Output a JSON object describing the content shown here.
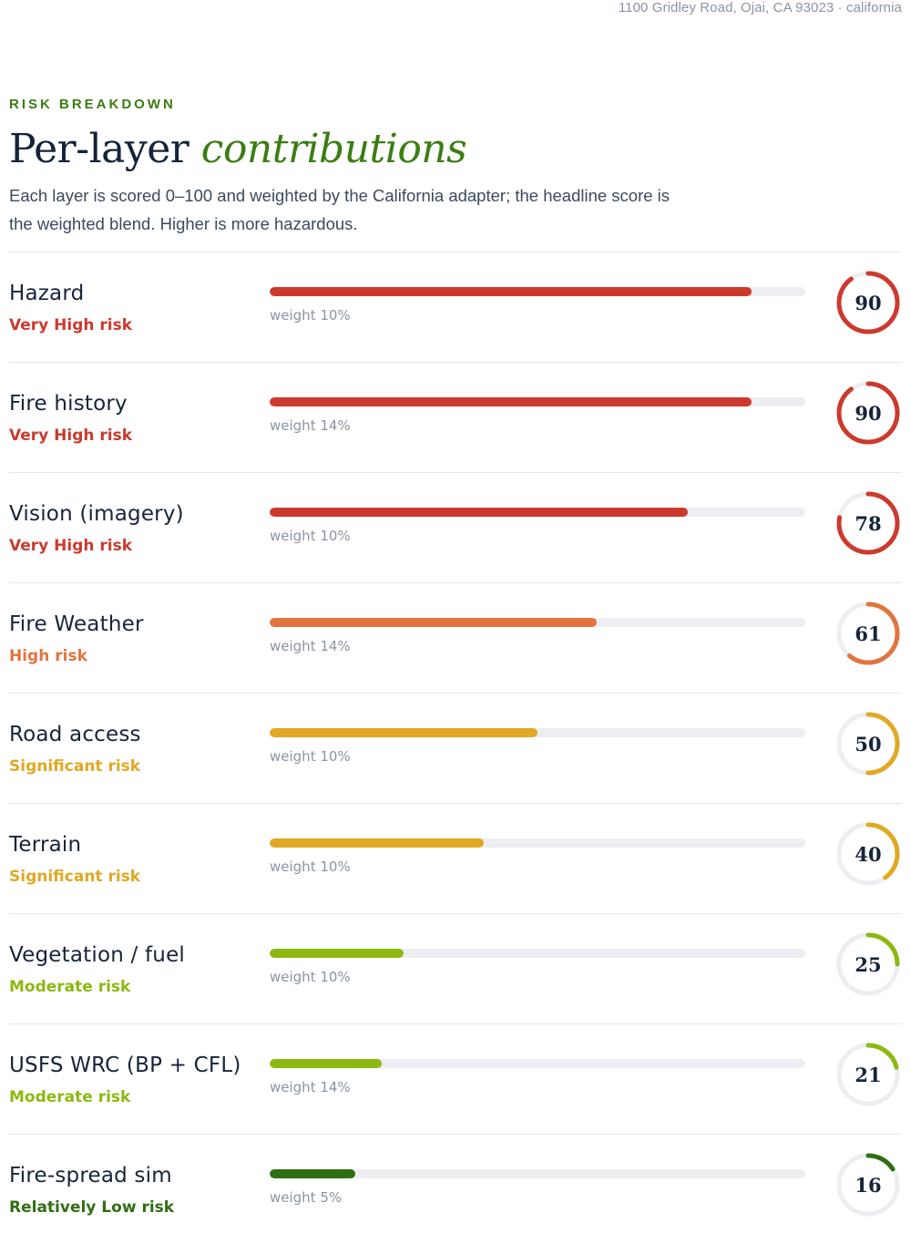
{
  "address": "1100 Gridley Road, Ojai, CA 93023 · california",
  "header": {
    "eyebrow": "RISK BREAKDOWN",
    "title_plain": "Per-layer ",
    "title_accent": "contributions",
    "subtitle": "Each layer is scored 0–100 and weighted by the California adapter; the headline score is the weighted blend. Higher is more hazardous."
  },
  "layers": [
    {
      "name": "Hazard",
      "risk": "Very High risk",
      "score": 90,
      "score_label": "90",
      "weight": "weight 10%",
      "color": "#cc3a2e"
    },
    {
      "name": "Fire history",
      "risk": "Very High risk",
      "score": 90,
      "score_label": "90",
      "weight": "weight 14%",
      "color": "#cc3a2e"
    },
    {
      "name": "Vision (imagery)",
      "risk": "Very High risk",
      "score": 78,
      "score_label": "78",
      "weight": "weight 10%",
      "color": "#cc3a2e"
    },
    {
      "name": "Fire Weather",
      "risk": "High risk",
      "score": 61,
      "score_label": "61",
      "weight": "weight 14%",
      "color": "#e2743f"
    },
    {
      "name": "Road access",
      "risk": "Significant risk",
      "score": 50,
      "score_label": "50",
      "weight": "weight 10%",
      "color": "#e0a823"
    },
    {
      "name": "Terrain",
      "risk": "Significant risk",
      "score": 40,
      "score_label": "40",
      "weight": "weight 10%",
      "color": "#e0a823"
    },
    {
      "name": "Vegetation / fuel",
      "risk": "Moderate risk",
      "score": 25,
      "score_label": "25",
      "weight": "weight 10%",
      "color": "#8cb811"
    },
    {
      "name": "USFS WRC (BP + CFL)",
      "risk": "Moderate risk",
      "score": 21,
      "score_label": "21",
      "weight": "weight 14%",
      "color": "#8cb811"
    },
    {
      "name": "Fire-spread sim",
      "risk": "Relatively Low risk",
      "score": 16,
      "score_label": "16",
      "weight": "weight 5%",
      "color": "#2f6e12"
    }
  ]
}
